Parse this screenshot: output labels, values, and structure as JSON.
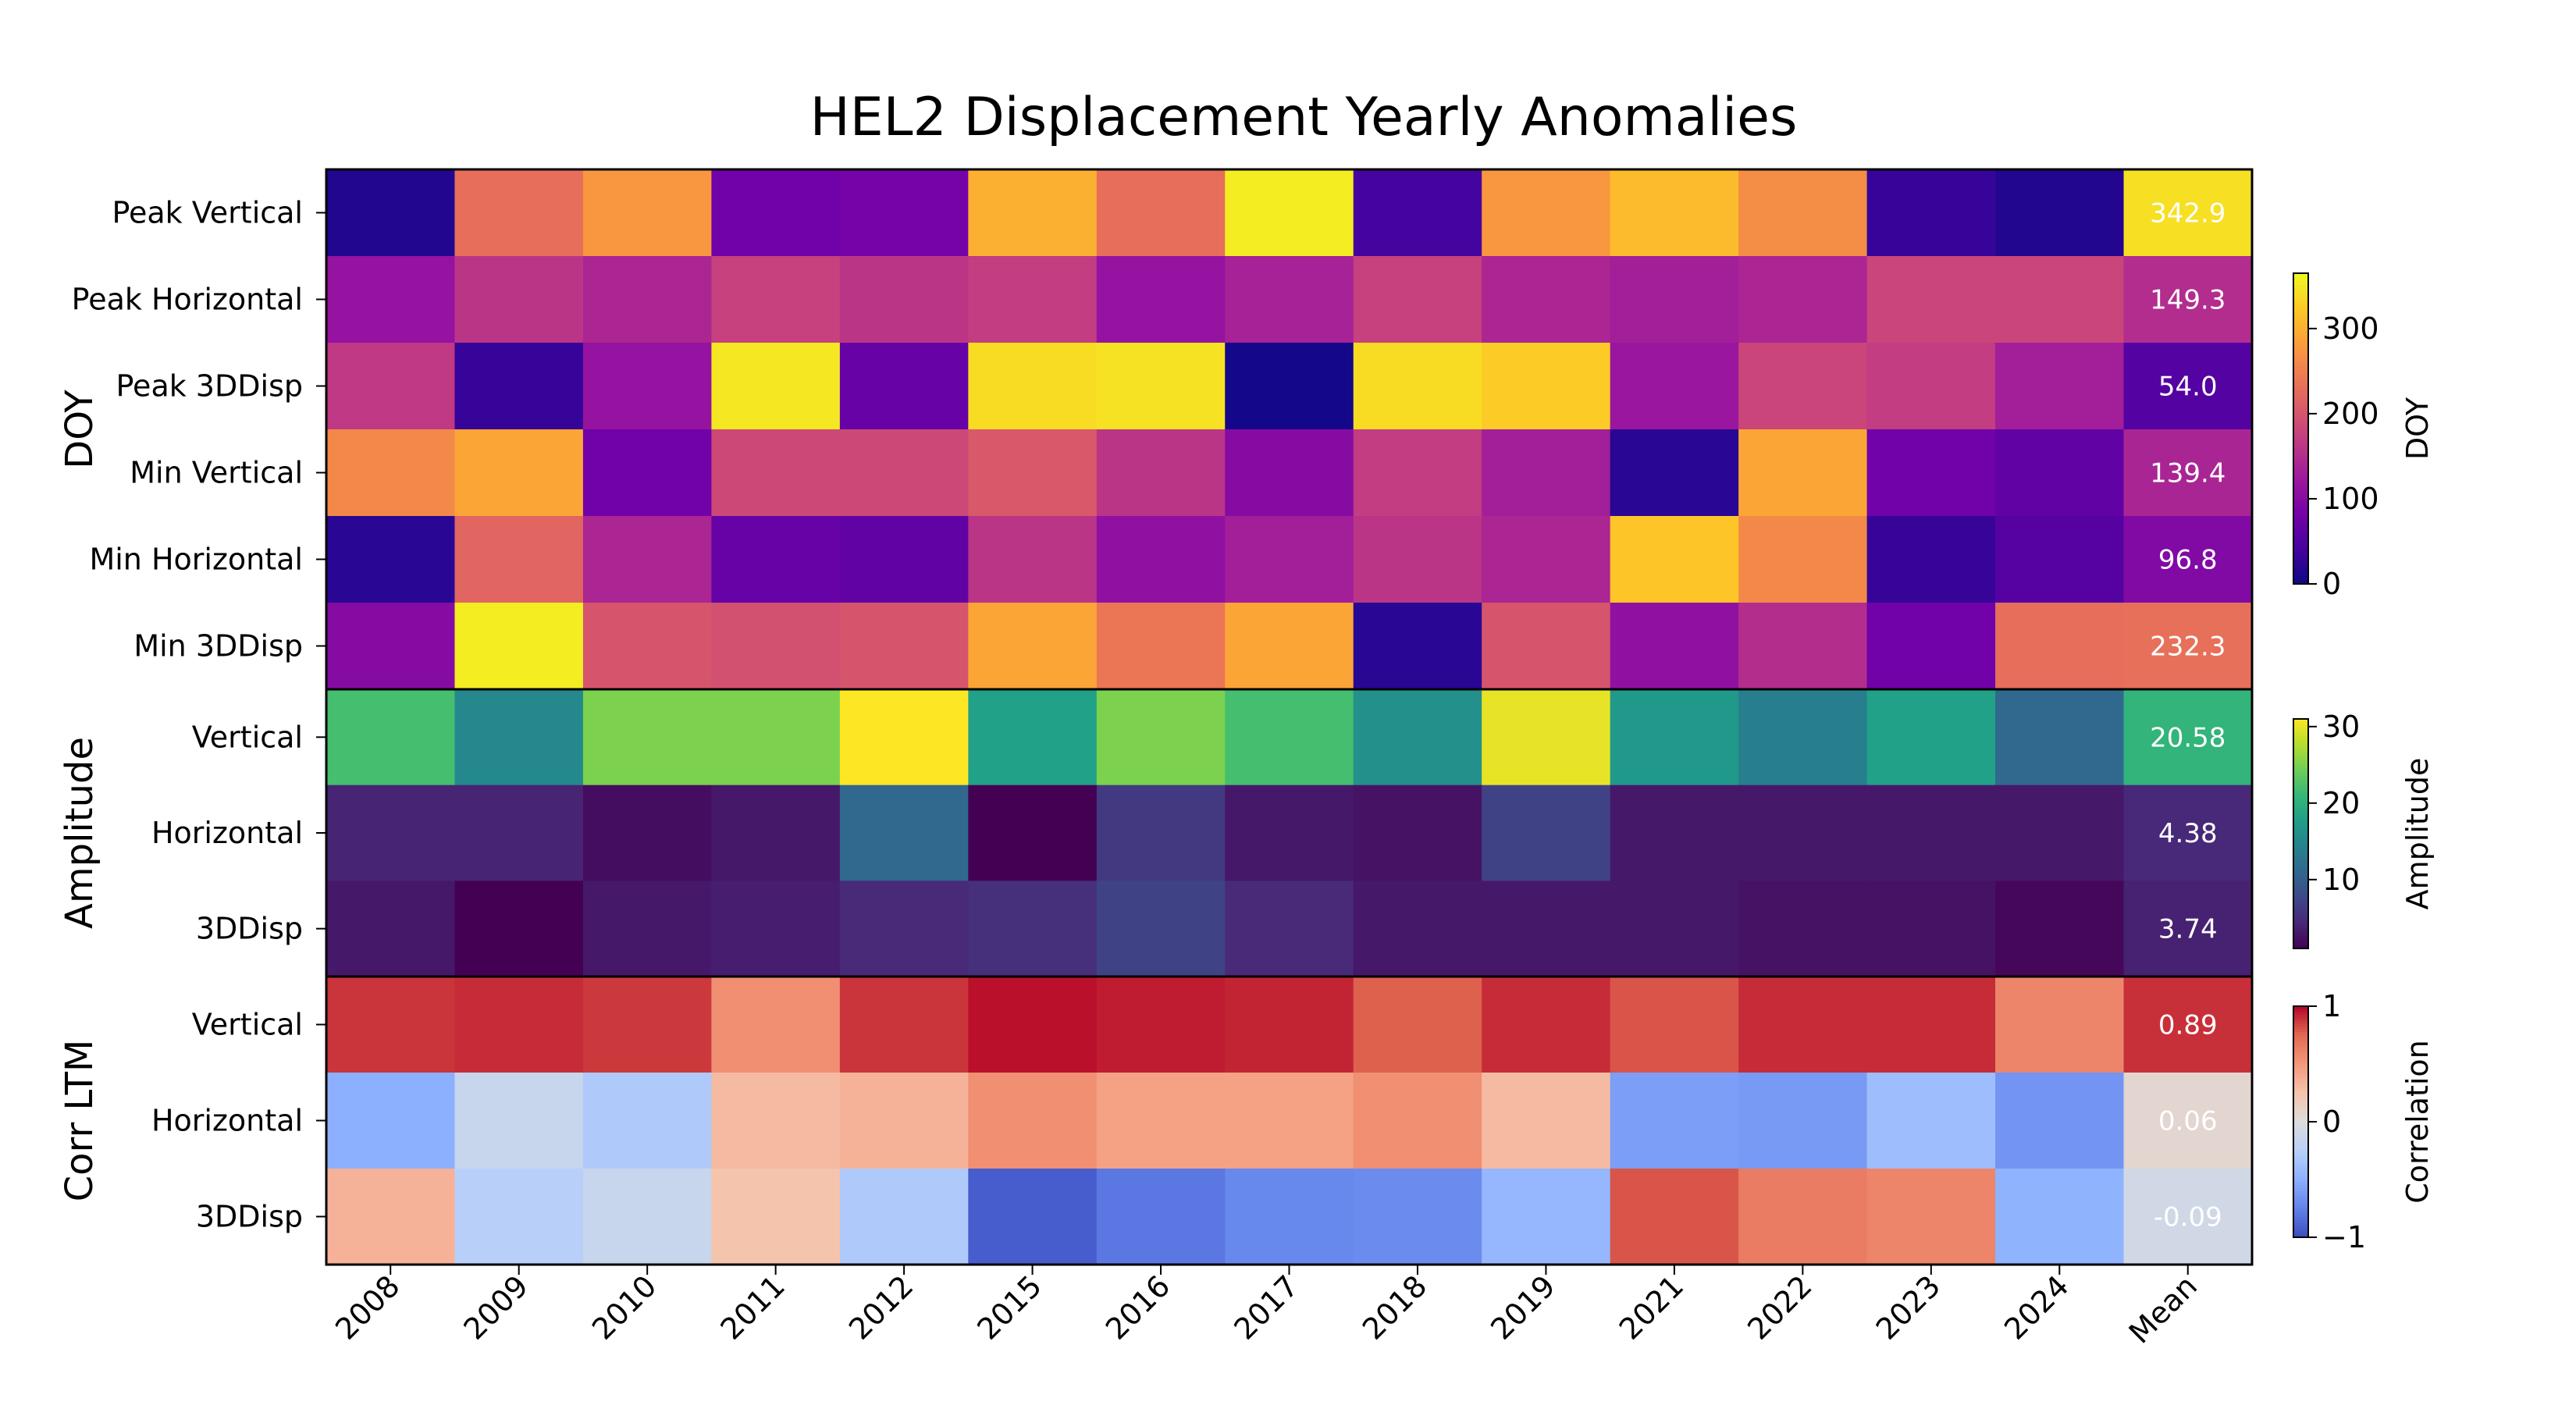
{
  "chart_data": {
    "type": "heatmap",
    "title": "HEL2 Displacement Yearly Anomalies",
    "columns": [
      "2008",
      "2009",
      "2010",
      "2011",
      "2012",
      "2015",
      "2016",
      "2017",
      "2018",
      "2019",
      "2021",
      "2022",
      "2023",
      "2024",
      "Mean"
    ],
    "grid": false,
    "panels": [
      {
        "group_label": "DOY",
        "colormap": "plasma",
        "colorbar_label": "DOY",
        "vlim": [
          0,
          365
        ],
        "ticks": [
          0,
          100,
          200,
          300
        ],
        "rows": [
          {
            "label": "Peak Vertical",
            "values": [
              15,
              230,
              275,
              80,
              85,
              300,
              230,
              355,
              40,
              275,
              310,
              265,
              30,
              15
            ],
            "mean_label": "342.9"
          },
          {
            "label": "Peak Horizontal",
            "values": [
              115,
              160,
              140,
              175,
              160,
              170,
              115,
              135,
              175,
              140,
              130,
              140,
              180,
              180
            ],
            "mean_label": "149.3"
          },
          {
            "label": "Peak 3DDisp",
            "values": [
              165,
              30,
              115,
              350,
              70,
              340,
              345,
              5,
              340,
              325,
              120,
              180,
              170,
              130
            ],
            "mean_label": "54.0"
          },
          {
            "label": "Min Vertical",
            "values": [
              260,
              290,
              80,
              185,
              185,
              205,
              160,
              100,
              170,
              130,
              20,
              290,
              80,
              65
            ],
            "mean_label": "139.4"
          },
          {
            "label": "Min Horizontal",
            "values": [
              20,
              220,
              140,
              70,
              65,
              160,
              110,
              130,
              160,
              140,
              320,
              260,
              30,
              55
            ],
            "mean_label": "96.8"
          },
          {
            "label": "Min 3DDisp",
            "values": [
              100,
              355,
              200,
              195,
              200,
              290,
              240,
              290,
              20,
              200,
              110,
              150,
              80,
              230
            ],
            "mean_label": "232.3"
          }
        ]
      },
      {
        "group_label": "Amplitude",
        "colormap": "viridis",
        "colorbar_label": "Amplitude",
        "vlim": [
          1,
          31
        ],
        "ticks": [
          10,
          20,
          30
        ],
        "rows": [
          {
            "label": "Vertical",
            "values": [
              22,
              15,
              25,
              25,
              31,
              18,
              25,
              22,
              16,
              30,
              17,
              14,
              18,
              11
            ],
            "mean_label": "20.58"
          },
          {
            "label": "Horizontal",
            "values": [
              4,
              4,
              2,
              3,
              11,
              1,
              6,
              3,
              2.5,
              7,
              3,
              3,
              3,
              3
            ],
            "mean_label": "4.38"
          },
          {
            "label": "3DDisp",
            "values": [
              3,
              1,
              3,
              3.5,
              4.5,
              5,
              7,
              4.5,
              3,
              3,
              3,
              2.5,
              2.5,
              1.5
            ],
            "mean_label": "3.74"
          }
        ]
      },
      {
        "group_label": "Corr LTM",
        "colormap": "coolwarm",
        "colorbar_label": "Correlation",
        "vlim": [
          -1,
          1
        ],
        "ticks": [
          -1,
          0,
          1
        ],
        "tick_labels": [
          "−1",
          "0",
          "1"
        ],
        "rows": [
          {
            "label": "Vertical",
            "values": [
              0.88,
              0.9,
              0.87,
              0.55,
              0.88,
              0.97,
              0.94,
              0.92,
              0.77,
              0.9,
              0.8,
              0.9,
              0.9,
              0.6
            ],
            "mean_label": "0.89"
          },
          {
            "label": "Horizontal",
            "values": [
              -0.5,
              -0.15,
              -0.3,
              0.3,
              0.35,
              0.55,
              0.45,
              0.45,
              0.55,
              0.3,
              -0.6,
              -0.62,
              -0.4,
              -0.65
            ],
            "mean_label": "0.06"
          },
          {
            "label": "3DDisp",
            "values": [
              0.35,
              -0.25,
              -0.15,
              0.25,
              -0.3,
              -0.92,
              -0.8,
              -0.72,
              -0.7,
              -0.45,
              0.8,
              0.65,
              0.6,
              -0.48
            ],
            "mean_label": "-0.09"
          }
        ]
      }
    ]
  }
}
